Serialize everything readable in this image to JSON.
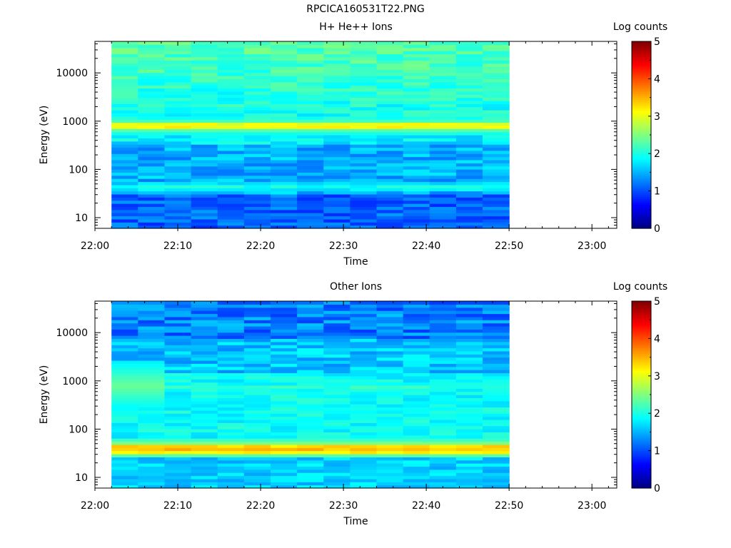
{
  "figure_title": "RPCICA160531T22.PNG",
  "chart_data": [
    {
      "type": "heatmap",
      "title": "H+ He++ Ions",
      "xlabel": "Time",
      "ylabel": "Energy (eV)",
      "x_tick_labels": [
        "22:00",
        "22:10",
        "22:20",
        "22:30",
        "22:40",
        "22:50",
        "23:00"
      ],
      "x_range": [
        "22:00",
        "23:03"
      ],
      "data_time_range": [
        "22:02",
        "22:50"
      ],
      "y_scale": "log",
      "y_range": [
        6,
        45000
      ],
      "y_tick_labels": [
        "10",
        "100",
        "1000",
        "10000"
      ],
      "colorbar": {
        "label": "Log counts",
        "range": [
          0,
          5
        ],
        "tick_labels": [
          "0",
          "1",
          "2",
          "3",
          "4",
          "5"
        ]
      },
      "features": [
        {
          "energy_eV": 800,
          "log_counts": 3.2
        },
        {
          "energy_eV": 43,
          "log_counts": 2.0
        },
        {
          "energy_eV": 1600,
          "log_counts": 1.8
        },
        {
          "energy_eV": 10,
          "log_counts": 0.8
        }
      ]
    },
    {
      "type": "heatmap",
      "title": "Other Ions",
      "xlabel": "Time",
      "ylabel": "Energy (eV)",
      "x_tick_labels": [
        "22:00",
        "22:10",
        "22:20",
        "22:30",
        "22:40",
        "22:50",
        "23:00"
      ],
      "x_range": [
        "22:00",
        "23:03"
      ],
      "data_time_range": [
        "22:02",
        "22:50"
      ],
      "y_scale": "log",
      "y_range": [
        6,
        45000
      ],
      "y_tick_labels": [
        "10",
        "100",
        "1000",
        "10000"
      ],
      "colorbar": {
        "label": "Log counts",
        "range": [
          0,
          5
        ],
        "tick_labels": [
          "0",
          "1",
          "2",
          "3",
          "4",
          "5"
        ]
      },
      "features": [
        {
          "energy_eV": 40,
          "log_counts": 3.5
        },
        {
          "energy_eV": 750,
          "log_counts": 2.1
        },
        {
          "energy_eV": 800,
          "log_counts": 2.4,
          "time_range": [
            "22:02",
            "22:08"
          ]
        },
        {
          "energy_eV": 20000,
          "log_counts": 0.8
        }
      ]
    }
  ]
}
